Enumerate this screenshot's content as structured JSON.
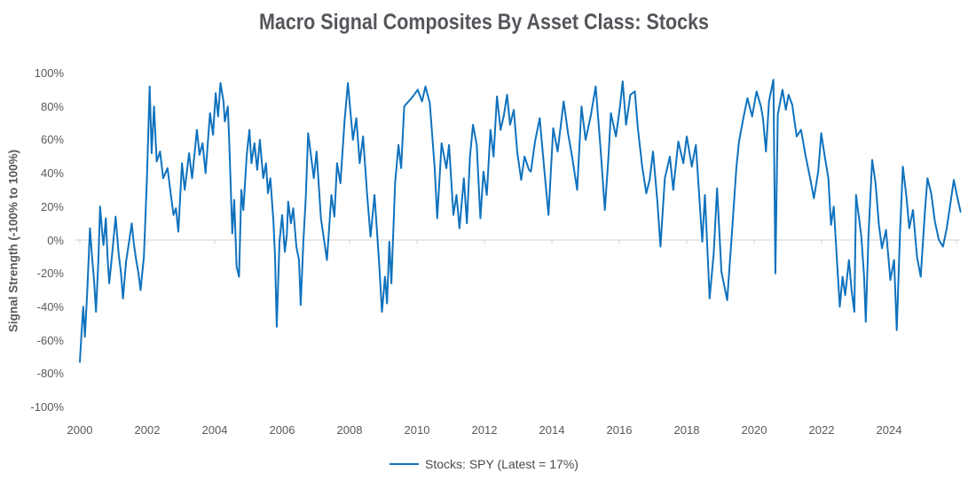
{
  "title": "Macro Signal Composites By Asset Class: Stocks",
  "y_axis": {
    "title": "Signal Strength (-100% to 100%)",
    "ticks": [
      {
        "label": "100%",
        "value": 100
      },
      {
        "label": "80%",
        "value": 80
      },
      {
        "label": "60%",
        "value": 60
      },
      {
        "label": "40%",
        "value": 40
      },
      {
        "label": "20%",
        "value": 20
      },
      {
        "label": "0%",
        "value": 0
      },
      {
        "label": "-20%",
        "value": -20
      },
      {
        "label": "-40%",
        "value": -40
      },
      {
        "label": "-60%",
        "value": -60
      },
      {
        "label": "-80%",
        "value": -80
      },
      {
        "label": "-100%",
        "value": -100
      }
    ]
  },
  "x_axis": {
    "labels": [
      {
        "label": "2000",
        "year": 2000
      },
      {
        "label": "2002",
        "year": 2002
      },
      {
        "label": "2004",
        "year": 2004
      },
      {
        "label": "2006",
        "year": 2006
      },
      {
        "label": "2008",
        "year": 2008
      },
      {
        "label": "2010",
        "year": 2010
      },
      {
        "label": "2012",
        "year": 2012
      },
      {
        "label": "2014",
        "year": 2014
      },
      {
        "label": "2016",
        "year": 2016
      },
      {
        "label": "2018",
        "year": 2018
      },
      {
        "label": "2020",
        "year": 2020
      },
      {
        "label": "2022",
        "year": 2022
      },
      {
        "label": "2024",
        "year": 2024
      }
    ],
    "tick_mark_years": [
      2000,
      2002,
      2004,
      2006,
      2008,
      2010,
      2012,
      2014,
      2016,
      2018,
      2020,
      2022,
      2024,
      2026
    ]
  },
  "legend": {
    "label": "Stocks: SPY (Latest = 17%)"
  },
  "colors": {
    "line": "#0F72BE",
    "axis_line": "#D9D9D9",
    "tick_text": "#595959",
    "title_text": "#54565B",
    "y_title_text": "#595959",
    "legend_text": "#4A4A4A",
    "background": "#FFFFFF"
  },
  "chart_data": {
    "type": "line",
    "title": "Macro Signal Composites By Asset Class: Stocks",
    "xlabel": "",
    "ylabel": "Signal Strength (-100% to 100%)",
    "ylim": [
      -100,
      100
    ],
    "xlim": [
      1999.85,
      2026.3
    ],
    "grid": false,
    "zero_line": true,
    "legend_position": "bottom",
    "series": [
      {
        "name": "Stocks: SPY (Latest = 17%)",
        "latest_pct": 17,
        "x_unit": "decimal_year",
        "y_unit": "percent",
        "points": [
          [
            2000.0,
            -73
          ],
          [
            2000.06,
            -52
          ],
          [
            2000.1,
            -40
          ],
          [
            2000.15,
            -58
          ],
          [
            2000.22,
            -30
          ],
          [
            2000.3,
            7
          ],
          [
            2000.36,
            -10
          ],
          [
            2000.42,
            -24
          ],
          [
            2000.48,
            -43
          ],
          [
            2000.55,
            -12
          ],
          [
            2000.6,
            20
          ],
          [
            2000.66,
            5
          ],
          [
            2000.7,
            -3
          ],
          [
            2000.77,
            13
          ],
          [
            2000.82,
            -10
          ],
          [
            2000.87,
            -26
          ],
          [
            2000.95,
            -10
          ],
          [
            2001.06,
            14
          ],
          [
            2001.15,
            -8
          ],
          [
            2001.22,
            -20
          ],
          [
            2001.28,
            -35
          ],
          [
            2001.37,
            -13
          ],
          [
            2001.46,
            -1
          ],
          [
            2001.54,
            10
          ],
          [
            2001.6,
            -2
          ],
          [
            2001.67,
            -12
          ],
          [
            2001.74,
            -20
          ],
          [
            2001.8,
            -30
          ],
          [
            2001.9,
            -10
          ],
          [
            2001.99,
            37
          ],
          [
            2002.07,
            92
          ],
          [
            2002.13,
            52
          ],
          [
            2002.2,
            80
          ],
          [
            2002.28,
            47
          ],
          [
            2002.38,
            53
          ],
          [
            2002.47,
            37
          ],
          [
            2002.6,
            43
          ],
          [
            2002.7,
            27
          ],
          [
            2002.78,
            15
          ],
          [
            2002.85,
            19
          ],
          [
            2002.92,
            5
          ],
          [
            2003.03,
            46
          ],
          [
            2003.11,
            30
          ],
          [
            2003.24,
            52
          ],
          [
            2003.33,
            37
          ],
          [
            2003.47,
            66
          ],
          [
            2003.55,
            51
          ],
          [
            2003.64,
            58
          ],
          [
            2003.73,
            40
          ],
          [
            2003.86,
            76
          ],
          [
            2003.95,
            63
          ],
          [
            2004.03,
            88
          ],
          [
            2004.1,
            74
          ],
          [
            2004.17,
            94
          ],
          [
            2004.26,
            83
          ],
          [
            2004.3,
            71
          ],
          [
            2004.39,
            80
          ],
          [
            2004.43,
            60
          ],
          [
            2004.52,
            4
          ],
          [
            2004.58,
            24
          ],
          [
            2004.65,
            -16
          ],
          [
            2004.72,
            -22
          ],
          [
            2004.79,
            30
          ],
          [
            2004.85,
            18
          ],
          [
            2004.95,
            51
          ],
          [
            2005.03,
            66
          ],
          [
            2005.09,
            46
          ],
          [
            2005.18,
            58
          ],
          [
            2005.26,
            42
          ],
          [
            2005.34,
            60
          ],
          [
            2005.44,
            37
          ],
          [
            2005.52,
            46
          ],
          [
            2005.58,
            28
          ],
          [
            2005.65,
            37
          ],
          [
            2005.74,
            12
          ],
          [
            2005.79,
            -10
          ],
          [
            2005.84,
            -52
          ],
          [
            2005.92,
            -1
          ],
          [
            2006.0,
            15
          ],
          [
            2006.08,
            -7
          ],
          [
            2006.14,
            3
          ],
          [
            2006.18,
            23
          ],
          [
            2006.26,
            10
          ],
          [
            2006.33,
            19
          ],
          [
            2006.42,
            -4
          ],
          [
            2006.5,
            -12
          ],
          [
            2006.55,
            -39
          ],
          [
            2006.63,
            -1
          ],
          [
            2006.7,
            25
          ],
          [
            2006.77,
            64
          ],
          [
            2006.94,
            37
          ],
          [
            2007.02,
            53
          ],
          [
            2007.15,
            13
          ],
          [
            2007.33,
            -12
          ],
          [
            2007.46,
            27
          ],
          [
            2007.55,
            14
          ],
          [
            2007.63,
            46
          ],
          [
            2007.73,
            34
          ],
          [
            2007.85,
            71
          ],
          [
            2007.95,
            94
          ],
          [
            2008.1,
            60
          ],
          [
            2008.2,
            73
          ],
          [
            2008.3,
            46
          ],
          [
            2008.4,
            62
          ],
          [
            2008.52,
            27
          ],
          [
            2008.62,
            2
          ],
          [
            2008.74,
            27
          ],
          [
            2008.87,
            -12
          ],
          [
            2008.96,
            -43
          ],
          [
            2009.05,
            -22
          ],
          [
            2009.11,
            -38
          ],
          [
            2009.18,
            -1
          ],
          [
            2009.24,
            -26
          ],
          [
            2009.35,
            34
          ],
          [
            2009.45,
            57
          ],
          [
            2009.53,
            43
          ],
          [
            2009.62,
            80
          ],
          [
            2009.75,
            83
          ],
          [
            2009.88,
            86
          ],
          [
            2010.02,
            90
          ],
          [
            2010.15,
            83
          ],
          [
            2010.25,
            92
          ],
          [
            2010.38,
            82
          ],
          [
            2010.52,
            44
          ],
          [
            2010.6,
            13
          ],
          [
            2010.73,
            58
          ],
          [
            2010.87,
            43
          ],
          [
            2010.95,
            57
          ],
          [
            2011.08,
            15
          ],
          [
            2011.17,
            27
          ],
          [
            2011.26,
            7
          ],
          [
            2011.39,
            37
          ],
          [
            2011.48,
            10
          ],
          [
            2011.57,
            50
          ],
          [
            2011.66,
            69
          ],
          [
            2011.77,
            57
          ],
          [
            2011.88,
            13
          ],
          [
            2011.97,
            41
          ],
          [
            2012.07,
            27
          ],
          [
            2012.18,
            66
          ],
          [
            2012.27,
            50
          ],
          [
            2012.37,
            86
          ],
          [
            2012.48,
            66
          ],
          [
            2012.58,
            75
          ],
          [
            2012.67,
            87
          ],
          [
            2012.76,
            69
          ],
          [
            2012.87,
            78
          ],
          [
            2012.97,
            53
          ],
          [
            2013.09,
            36
          ],
          [
            2013.19,
            50
          ],
          [
            2013.32,
            42
          ],
          [
            2013.38,
            41
          ],
          [
            2013.5,
            59
          ],
          [
            2013.64,
            73
          ],
          [
            2013.77,
            43
          ],
          [
            2013.9,
            15
          ],
          [
            2014.04,
            67
          ],
          [
            2014.17,
            53
          ],
          [
            2014.35,
            83
          ],
          [
            2014.48,
            64
          ],
          [
            2014.6,
            50
          ],
          [
            2014.75,
            30
          ],
          [
            2014.88,
            80
          ],
          [
            2015.0,
            60
          ],
          [
            2015.15,
            74
          ],
          [
            2015.3,
            92
          ],
          [
            2015.45,
            53
          ],
          [
            2015.57,
            18
          ],
          [
            2015.68,
            50
          ],
          [
            2015.75,
            76
          ],
          [
            2015.9,
            62
          ],
          [
            2016.02,
            80
          ],
          [
            2016.1,
            95
          ],
          [
            2016.2,
            69
          ],
          [
            2016.33,
            87
          ],
          [
            2016.46,
            89
          ],
          [
            2016.55,
            67
          ],
          [
            2016.68,
            44
          ],
          [
            2016.8,
            28
          ],
          [
            2016.9,
            36
          ],
          [
            2017.0,
            53
          ],
          [
            2017.13,
            23
          ],
          [
            2017.22,
            -4
          ],
          [
            2017.35,
            37
          ],
          [
            2017.5,
            50
          ],
          [
            2017.6,
            30
          ],
          [
            2017.75,
            59
          ],
          [
            2017.9,
            46
          ],
          [
            2018.0,
            62
          ],
          [
            2018.15,
            44
          ],
          [
            2018.27,
            57
          ],
          [
            2018.46,
            -1
          ],
          [
            2018.54,
            27
          ],
          [
            2018.68,
            -35
          ],
          [
            2018.8,
            -8
          ],
          [
            2018.9,
            31
          ],
          [
            2019.03,
            -19
          ],
          [
            2019.2,
            -36
          ],
          [
            2019.34,
            4
          ],
          [
            2019.47,
            43
          ],
          [
            2019.55,
            59
          ],
          [
            2019.68,
            73
          ],
          [
            2019.8,
            85
          ],
          [
            2019.94,
            74
          ],
          [
            2020.07,
            89
          ],
          [
            2020.2,
            80
          ],
          [
            2020.26,
            73
          ],
          [
            2020.35,
            53
          ],
          [
            2020.44,
            83
          ],
          [
            2020.57,
            96
          ],
          [
            2020.63,
            -20
          ],
          [
            2020.7,
            75
          ],
          [
            2020.84,
            90
          ],
          [
            2020.94,
            78
          ],
          [
            2021.02,
            87
          ],
          [
            2021.13,
            81
          ],
          [
            2021.26,
            62
          ],
          [
            2021.39,
            66
          ],
          [
            2021.53,
            50
          ],
          [
            2021.66,
            37
          ],
          [
            2021.77,
            25
          ],
          [
            2021.9,
            41
          ],
          [
            2021.99,
            64
          ],
          [
            2022.07,
            53
          ],
          [
            2022.2,
            37
          ],
          [
            2022.28,
            9
          ],
          [
            2022.36,
            20
          ],
          [
            2022.46,
            -14
          ],
          [
            2022.54,
            -40
          ],
          [
            2022.62,
            -22
          ],
          [
            2022.7,
            -33
          ],
          [
            2022.81,
            -12
          ],
          [
            2022.89,
            -30
          ],
          [
            2022.97,
            -43
          ],
          [
            2023.02,
            27
          ],
          [
            2023.11,
            13
          ],
          [
            2023.18,
            2
          ],
          [
            2023.26,
            -22
          ],
          [
            2023.31,
            -49
          ],
          [
            2023.39,
            2
          ],
          [
            2023.5,
            48
          ],
          [
            2023.6,
            34
          ],
          [
            2023.7,
            9
          ],
          [
            2023.79,
            -5
          ],
          [
            2023.91,
            6
          ],
          [
            2024.04,
            -24
          ],
          [
            2024.15,
            -12
          ],
          [
            2024.23,
            -54
          ],
          [
            2024.33,
            6
          ],
          [
            2024.41,
            44
          ],
          [
            2024.52,
            25
          ],
          [
            2024.6,
            7
          ],
          [
            2024.71,
            18
          ],
          [
            2024.83,
            -10
          ],
          [
            2024.94,
            -22
          ],
          [
            2025.06,
            16
          ],
          [
            2025.14,
            37
          ],
          [
            2025.25,
            28
          ],
          [
            2025.36,
            11
          ],
          [
            2025.48,
            0
          ],
          [
            2025.6,
            -4
          ],
          [
            2025.71,
            7
          ],
          [
            2025.83,
            23
          ],
          [
            2025.92,
            36
          ],
          [
            2026.0,
            28
          ],
          [
            2026.12,
            17
          ]
        ]
      }
    ]
  }
}
